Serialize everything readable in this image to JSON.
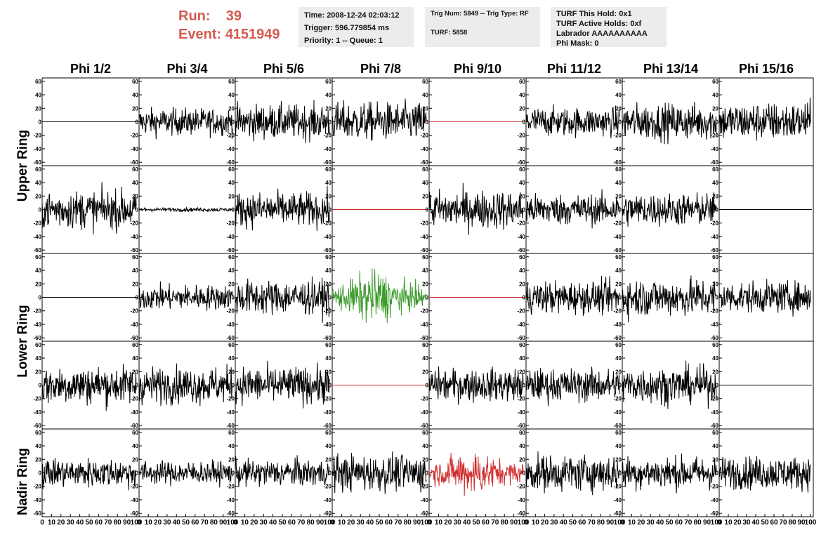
{
  "header": {
    "run_label": "Run:",
    "run_value": "39",
    "event_label": "Event:",
    "event_value": "4151949"
  },
  "info_boxes": {
    "time": "Time: 2008-12-24 02:03:12",
    "trigger": "Trigger: 596.779854 ms",
    "priority": "Priority: 1 -- Queue: 1",
    "trig_num": "Trig Num: 5849 -- Trig Type: RF",
    "turf": "TURF: 5858",
    "turf_this_hold": "TURF This Hold: 0x1",
    "turf_active_holds": "TURF Active Holds: 0xf",
    "labrador": "Labrador AAAAAAAAAA",
    "phi_mask": "Phi Mask: 0"
  },
  "columns": [
    "Phi 1/2",
    "Phi 3/4",
    "Phi 5/6",
    "Phi 7/8",
    "Phi 9/10",
    "Phi 11/12",
    "Phi 13/14",
    "Phi 15/16"
  ],
  "row_groups": [
    "Upper Ring",
    "Lower Ring",
    "Nadir Ring"
  ],
  "colors": {
    "header_red": "#d35b50",
    "info_box_bg": "#ececec",
    "trace_default": "#000000",
    "trace_masked": "#cc2a2a",
    "trace_triggered": "#3a9a2a",
    "trace_nadir_hit": "#d03030"
  },
  "chart_data": {
    "type": "line",
    "title": "",
    "xlim": [
      0,
      100
    ],
    "ylim": [
      -65,
      65
    ],
    "y_ticks": [
      60,
      40,
      20,
      0,
      -20,
      -40,
      -60
    ],
    "y_tick_labels": [
      "60",
      "40",
      "20",
      "0",
      "-20",
      "-40",
      "-60"
    ],
    "x_tick_labels": [
      "0",
      "10",
      "20",
      "30",
      "40",
      "50",
      "60",
      "70",
      "80",
      "90",
      "100"
    ],
    "panel_rows": 5,
    "panel_cols": 8,
    "panels": [
      [
        {
          "style": "flat",
          "color": "#000000",
          "amp": 0
        },
        {
          "style": "noise",
          "color": "#000000",
          "amp": 14
        },
        {
          "style": "noise",
          "color": "#000000",
          "amp": 18
        },
        {
          "style": "noise",
          "color": "#000000",
          "amp": 20
        },
        {
          "style": "flat",
          "color": "#cc2a2a",
          "amp": 0
        },
        {
          "style": "noise",
          "color": "#000000",
          "amp": 15
        },
        {
          "style": "noise",
          "color": "#000000",
          "amp": 19
        },
        {
          "style": "noise",
          "color": "#000000",
          "amp": 20
        }
      ],
      [
        {
          "style": "noise",
          "color": "#000000",
          "amp": 20
        },
        {
          "style": "noise",
          "color": "#000000",
          "amp": 2
        },
        {
          "style": "noise",
          "color": "#000000",
          "amp": 18
        },
        {
          "style": "flat",
          "color": "#cc2a2a",
          "amp": 0
        },
        {
          "style": "noise",
          "color": "#000000",
          "amp": 20
        },
        {
          "style": "noise",
          "color": "#000000",
          "amp": 16
        },
        {
          "style": "noise",
          "color": "#000000",
          "amp": 17
        },
        {
          "style": "flat",
          "color": "#000000",
          "amp": 0
        }
      ],
      [
        {
          "style": "flat",
          "color": "#000000",
          "amp": 0
        },
        {
          "style": "noise",
          "color": "#000000",
          "amp": 13
        },
        {
          "style": "noise",
          "color": "#000000",
          "amp": 18
        },
        {
          "style": "burst",
          "color": "#3a9a2a",
          "amp": 28
        },
        {
          "style": "flat",
          "color": "#cc2a2a",
          "amp": 0
        },
        {
          "style": "noise",
          "color": "#000000",
          "amp": 17
        },
        {
          "style": "noise",
          "color": "#000000",
          "amp": 20
        },
        {
          "style": "noise",
          "color": "#000000",
          "amp": 16
        }
      ],
      [
        {
          "style": "noise",
          "color": "#000000",
          "amp": 20
        },
        {
          "style": "noise",
          "color": "#000000",
          "amp": 19
        },
        {
          "style": "noise",
          "color": "#000000",
          "amp": 19
        },
        {
          "style": "flat",
          "color": "#cc2a2a",
          "amp": 0
        },
        {
          "style": "noise",
          "color": "#000000",
          "amp": 17
        },
        {
          "style": "noise",
          "color": "#000000",
          "amp": 17
        },
        {
          "style": "noise",
          "color": "#000000",
          "amp": 19
        },
        {
          "style": "flat",
          "color": "#000000",
          "amp": 0
        }
      ],
      [
        {
          "style": "noise",
          "color": "#000000",
          "amp": 15
        },
        {
          "style": "noise",
          "color": "#000000",
          "amp": 12
        },
        {
          "style": "noise",
          "color": "#000000",
          "amp": 14
        },
        {
          "style": "noise",
          "color": "#000000",
          "amp": 19
        },
        {
          "style": "burst",
          "color": "#d03030",
          "amp": 24
        },
        {
          "style": "noise",
          "color": "#000000",
          "amp": 19
        },
        {
          "style": "noise",
          "color": "#000000",
          "amp": 17
        },
        {
          "style": "noise",
          "color": "#000000",
          "amp": 17
        }
      ]
    ]
  }
}
